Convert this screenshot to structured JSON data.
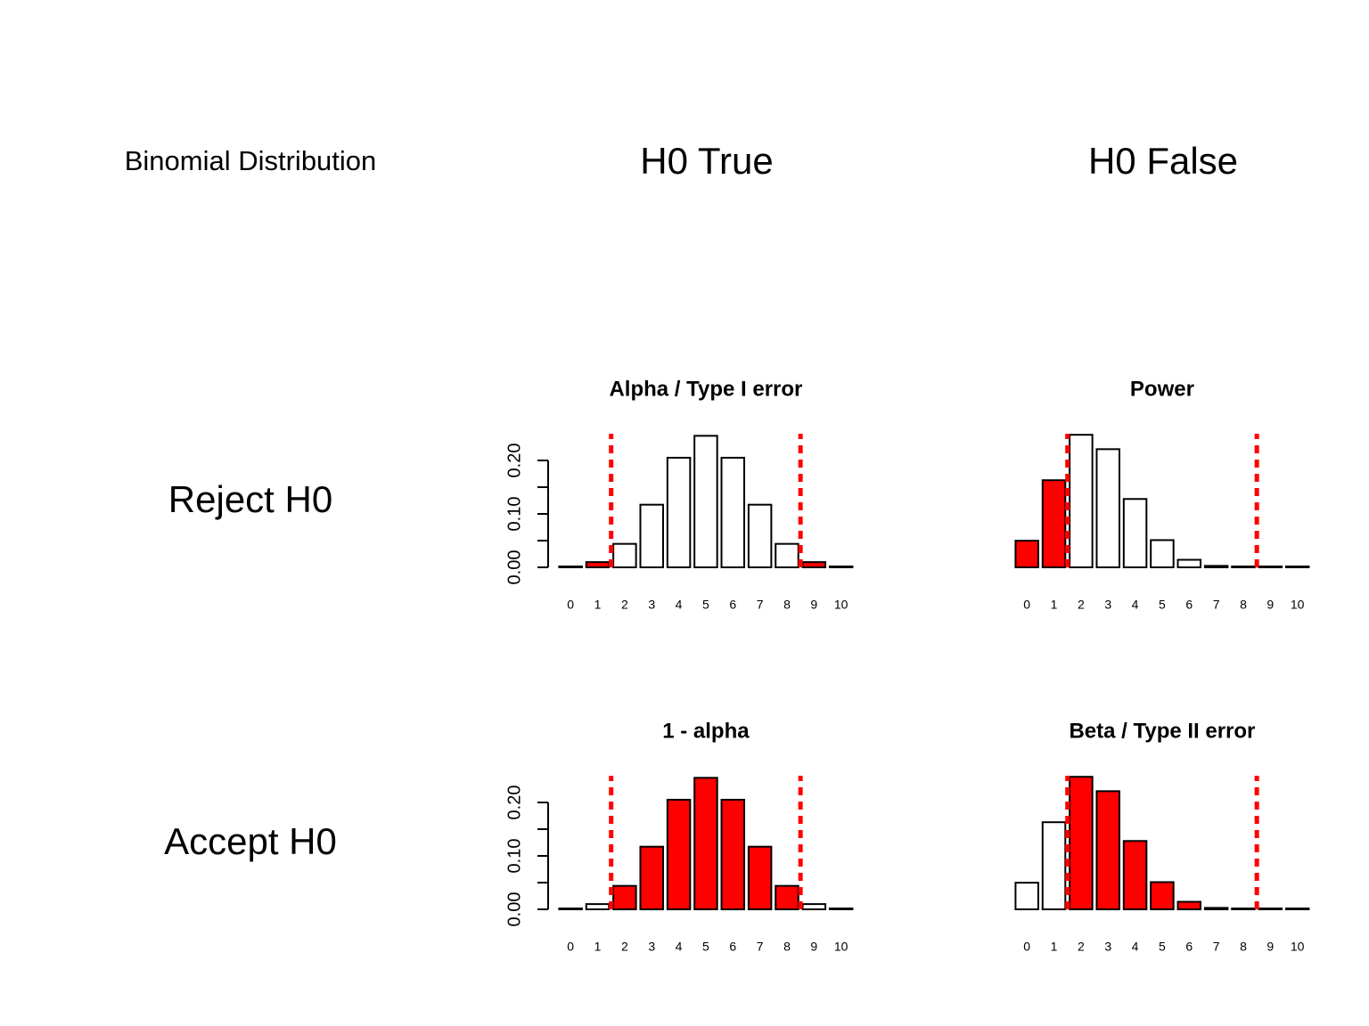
{
  "labels": {
    "figure_title": "Binomial Distribution",
    "col_h0_true": "H0 True",
    "col_h0_false": "H0 False",
    "row_reject": "Reject H0",
    "row_accept": "Accept H0"
  },
  "colors": {
    "highlight": "#ff0000",
    "cutoff_line": "#ff0000",
    "plain": "#ffffff",
    "outline": "#000000"
  },
  "chart_data": [
    {
      "id": "alpha",
      "type": "bar",
      "title": "Alpha / Type I error",
      "categories": [
        "0",
        "1",
        "2",
        "3",
        "4",
        "5",
        "6",
        "7",
        "8",
        "9",
        "10"
      ],
      "values": [
        0.001,
        0.0098,
        0.0439,
        0.1172,
        0.2051,
        0.2461,
        0.2051,
        0.1172,
        0.0439,
        0.0098,
        0.001
      ],
      "highlighted": [
        0,
        1,
        9,
        10
      ],
      "cutoffs": [
        1.5,
        8.5
      ],
      "show_yaxis": true,
      "yticks": [
        "0.00",
        "0.10",
        "0.20"
      ],
      "ylim": [
        0,
        0.25
      ]
    },
    {
      "id": "power",
      "type": "bar",
      "title": "Power",
      "categories": [
        "0",
        "1",
        "2",
        "3",
        "4",
        "5",
        "6",
        "7",
        "8",
        "9",
        "10"
      ],
      "values": [
        0.0498,
        0.163,
        0.248,
        0.2211,
        0.1279,
        0.0509,
        0.0141,
        0.0027,
        0.0003,
        0.0,
        0.0
      ],
      "highlighted": [
        0,
        1,
        9,
        10
      ],
      "cutoffs": [
        1.5,
        8.5
      ],
      "show_yaxis": false,
      "ylim": [
        0,
        0.25
      ]
    },
    {
      "id": "one_minus_alpha",
      "type": "bar",
      "title": "1 - alpha",
      "categories": [
        "0",
        "1",
        "2",
        "3",
        "4",
        "5",
        "6",
        "7",
        "8",
        "9",
        "10"
      ],
      "values": [
        0.001,
        0.0098,
        0.0439,
        0.1172,
        0.2051,
        0.2461,
        0.2051,
        0.1172,
        0.0439,
        0.0098,
        0.001
      ],
      "highlighted": [
        2,
        3,
        4,
        5,
        6,
        7,
        8
      ],
      "cutoffs": [
        1.5,
        8.5
      ],
      "show_yaxis": true,
      "yticks": [
        "0.00",
        "0.10",
        "0.20"
      ],
      "ylim": [
        0,
        0.25
      ]
    },
    {
      "id": "beta",
      "type": "bar",
      "title": "Beta / Type II error",
      "categories": [
        "0",
        "1",
        "2",
        "3",
        "4",
        "5",
        "6",
        "7",
        "8",
        "9",
        "10"
      ],
      "values": [
        0.0498,
        0.163,
        0.248,
        0.2211,
        0.1279,
        0.0509,
        0.0141,
        0.0027,
        0.0003,
        0.0,
        0.0
      ],
      "highlighted": [
        2,
        3,
        4,
        5,
        6,
        7,
        8
      ],
      "cutoffs": [
        1.5,
        8.5
      ],
      "show_yaxis": false,
      "ylim": [
        0,
        0.25
      ]
    }
  ]
}
